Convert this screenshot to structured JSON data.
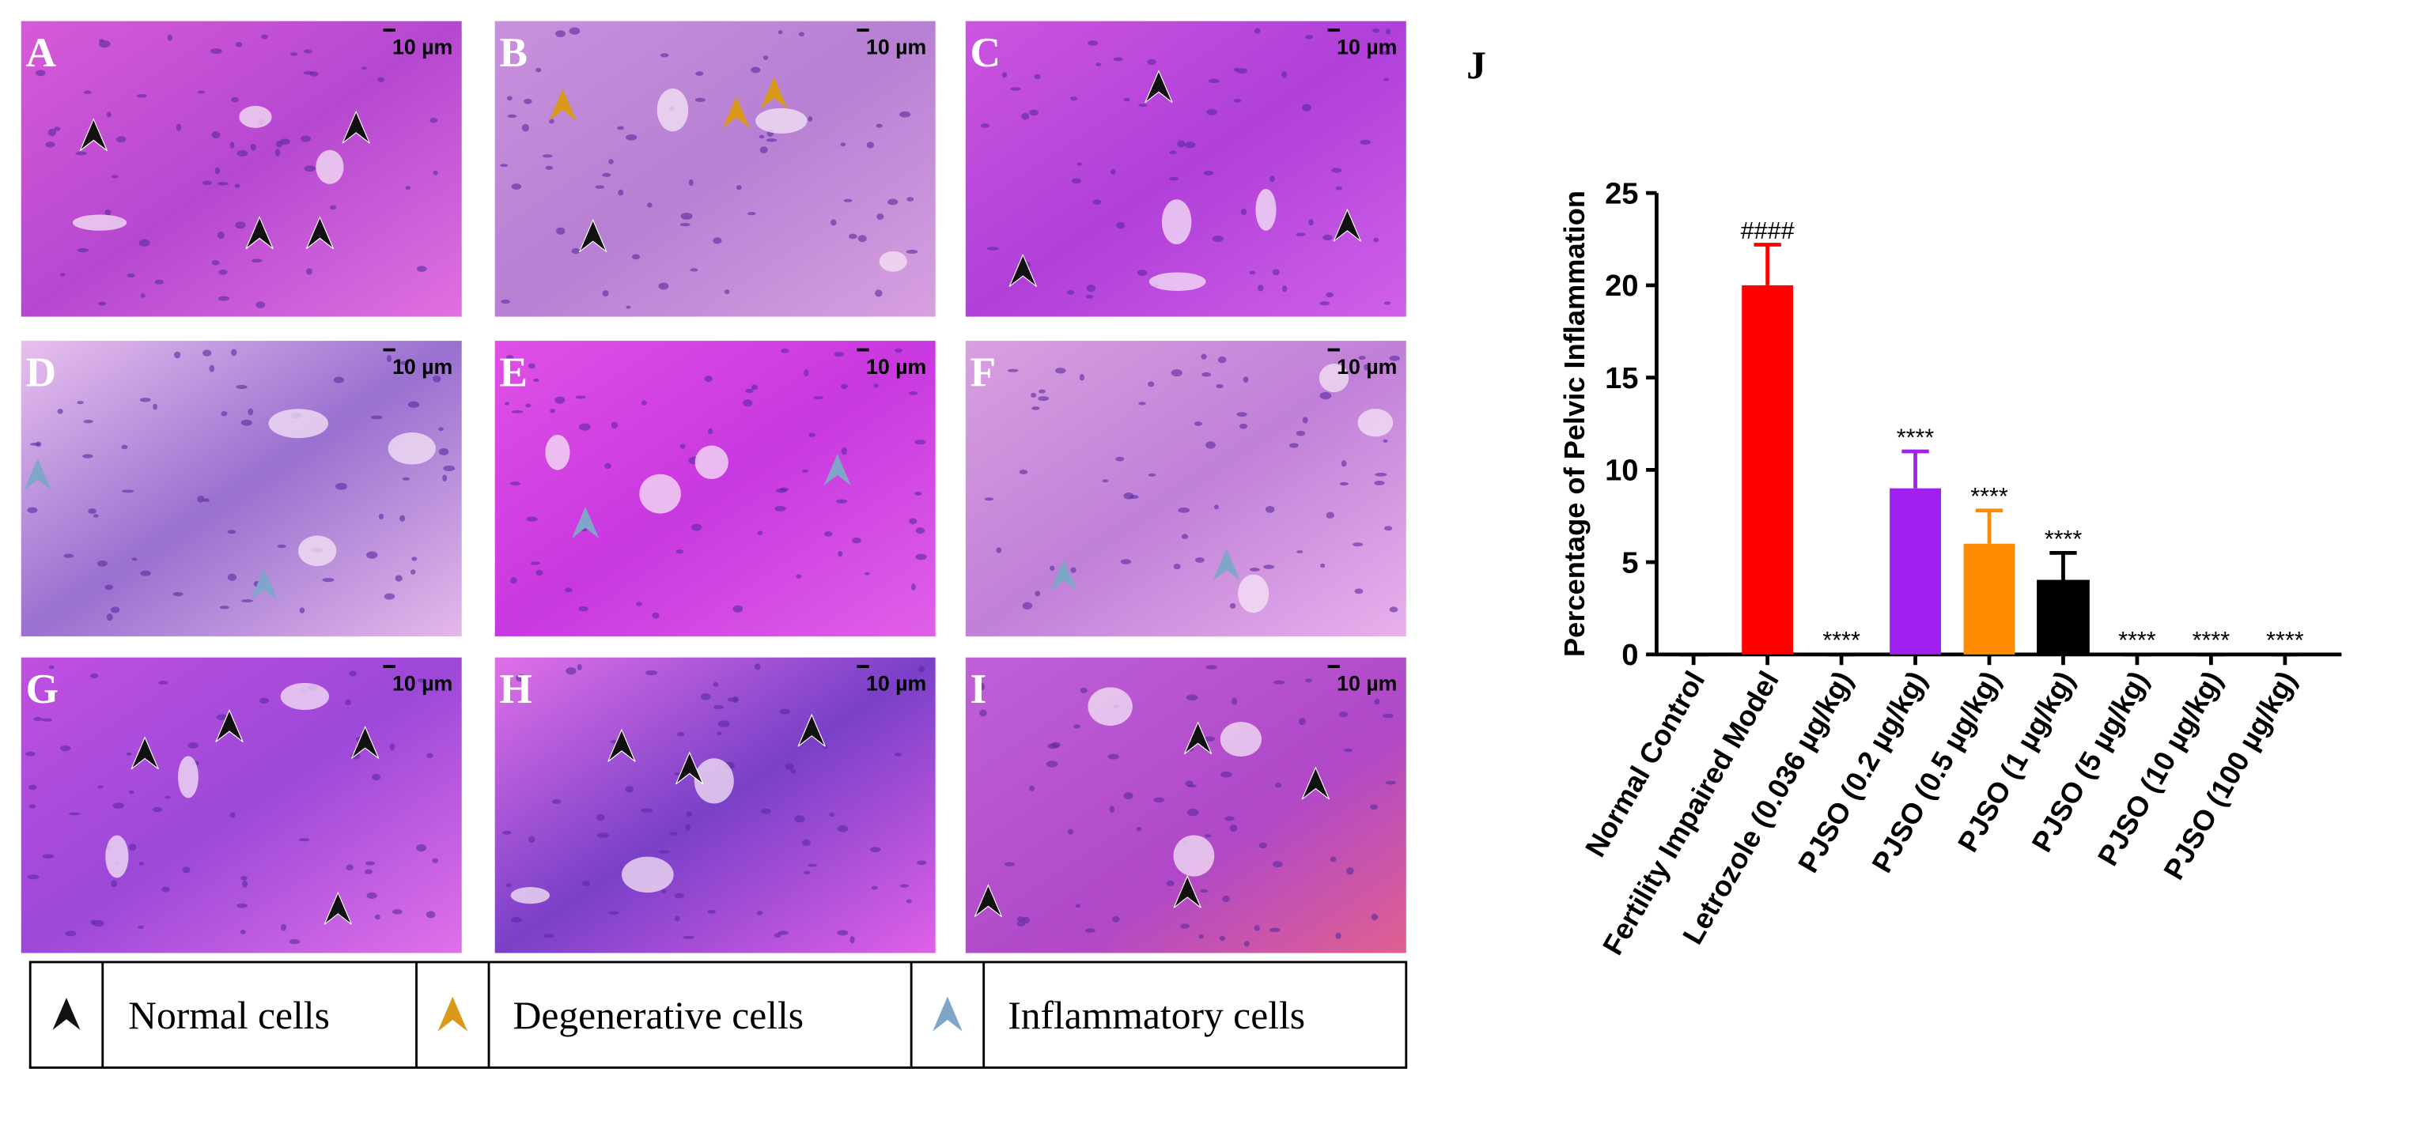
{
  "panels": [
    {
      "label": "A",
      "scale": "10 µm"
    },
    {
      "label": "B",
      "scale": "10 µm"
    },
    {
      "label": "C",
      "scale": "10 µm"
    },
    {
      "label": "D",
      "scale": "10 µm"
    },
    {
      "label": "E",
      "scale": "10 µm"
    },
    {
      "label": "F",
      "scale": "10 µm"
    },
    {
      "label": "G",
      "scale": "10 µm"
    },
    {
      "label": "H",
      "scale": "10 µm"
    },
    {
      "label": "I",
      "scale": "10 µm"
    }
  ],
  "legend": [
    "Normal cells",
    "Degenerative cells",
    "Inflammatory cells"
  ],
  "chart_data": {
    "type": "bar",
    "panel_label": "J",
    "ylabel": "Percentage of Pelvic Inflammation",
    "categories": [
      "Normal Control",
      "Fertility Impaired Model",
      "Letrozole (0.036 µg/kg)",
      "PJSO (0.2 µg/kg)",
      "PJSO (0.5 µg/kg)",
      "PJSO (1 µg/kg)",
      "PJSO (5 µg/kg)",
      "PJSO (10 µg/kg)",
      "PJSO (100 µg/kg)"
    ],
    "values": [
      0,
      20,
      0,
      9,
      6,
      4,
      0,
      0,
      0
    ],
    "errors": [
      0,
      2.2,
      0,
      2,
      1.8,
      1.5,
      0,
      0,
      0
    ],
    "significance": [
      null,
      "####",
      "****",
      "****",
      "****",
      "****",
      "****",
      "****",
      "****"
    ],
    "colors": [
      "#000000",
      "#ff0000",
      "#000000",
      "#a020f0",
      "#ff8c00",
      "#000000",
      "#000000",
      "#000000",
      "#000000"
    ],
    "ylim": [
      0,
      25
    ],
    "yticks": [
      0,
      5,
      10,
      15,
      20,
      25
    ]
  }
}
